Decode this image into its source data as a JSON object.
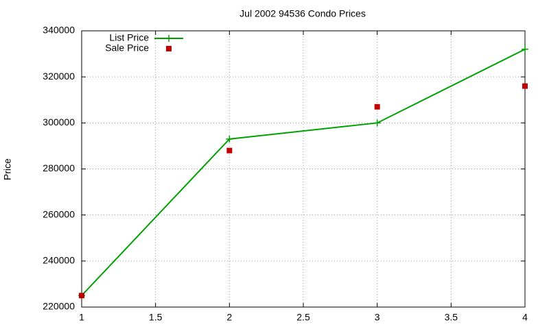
{
  "chart_data": {
    "type": "line",
    "title": "Jul 2002 94536 Condo Prices",
    "y_label": "Price",
    "x": [
      1,
      2,
      3,
      4
    ],
    "series": [
      {
        "name": "List Price",
        "color": "#00a000",
        "style": "linespoints",
        "values": [
          225000,
          293000,
          300000,
          332000
        ]
      },
      {
        "name": "Sale Price",
        "color": "#c00000",
        "style": "points",
        "values": [
          225000,
          288000,
          307000,
          316000
        ]
      }
    ],
    "xlim": [
      1,
      4
    ],
    "xticks": [
      1,
      1.5,
      2,
      2.5,
      3,
      3.5,
      4
    ],
    "ylim": [
      220000,
      340000
    ],
    "yticks": [
      220000,
      240000,
      260000,
      280000,
      300000,
      320000,
      340000
    ],
    "grid": true,
    "legend": "top-left"
  }
}
